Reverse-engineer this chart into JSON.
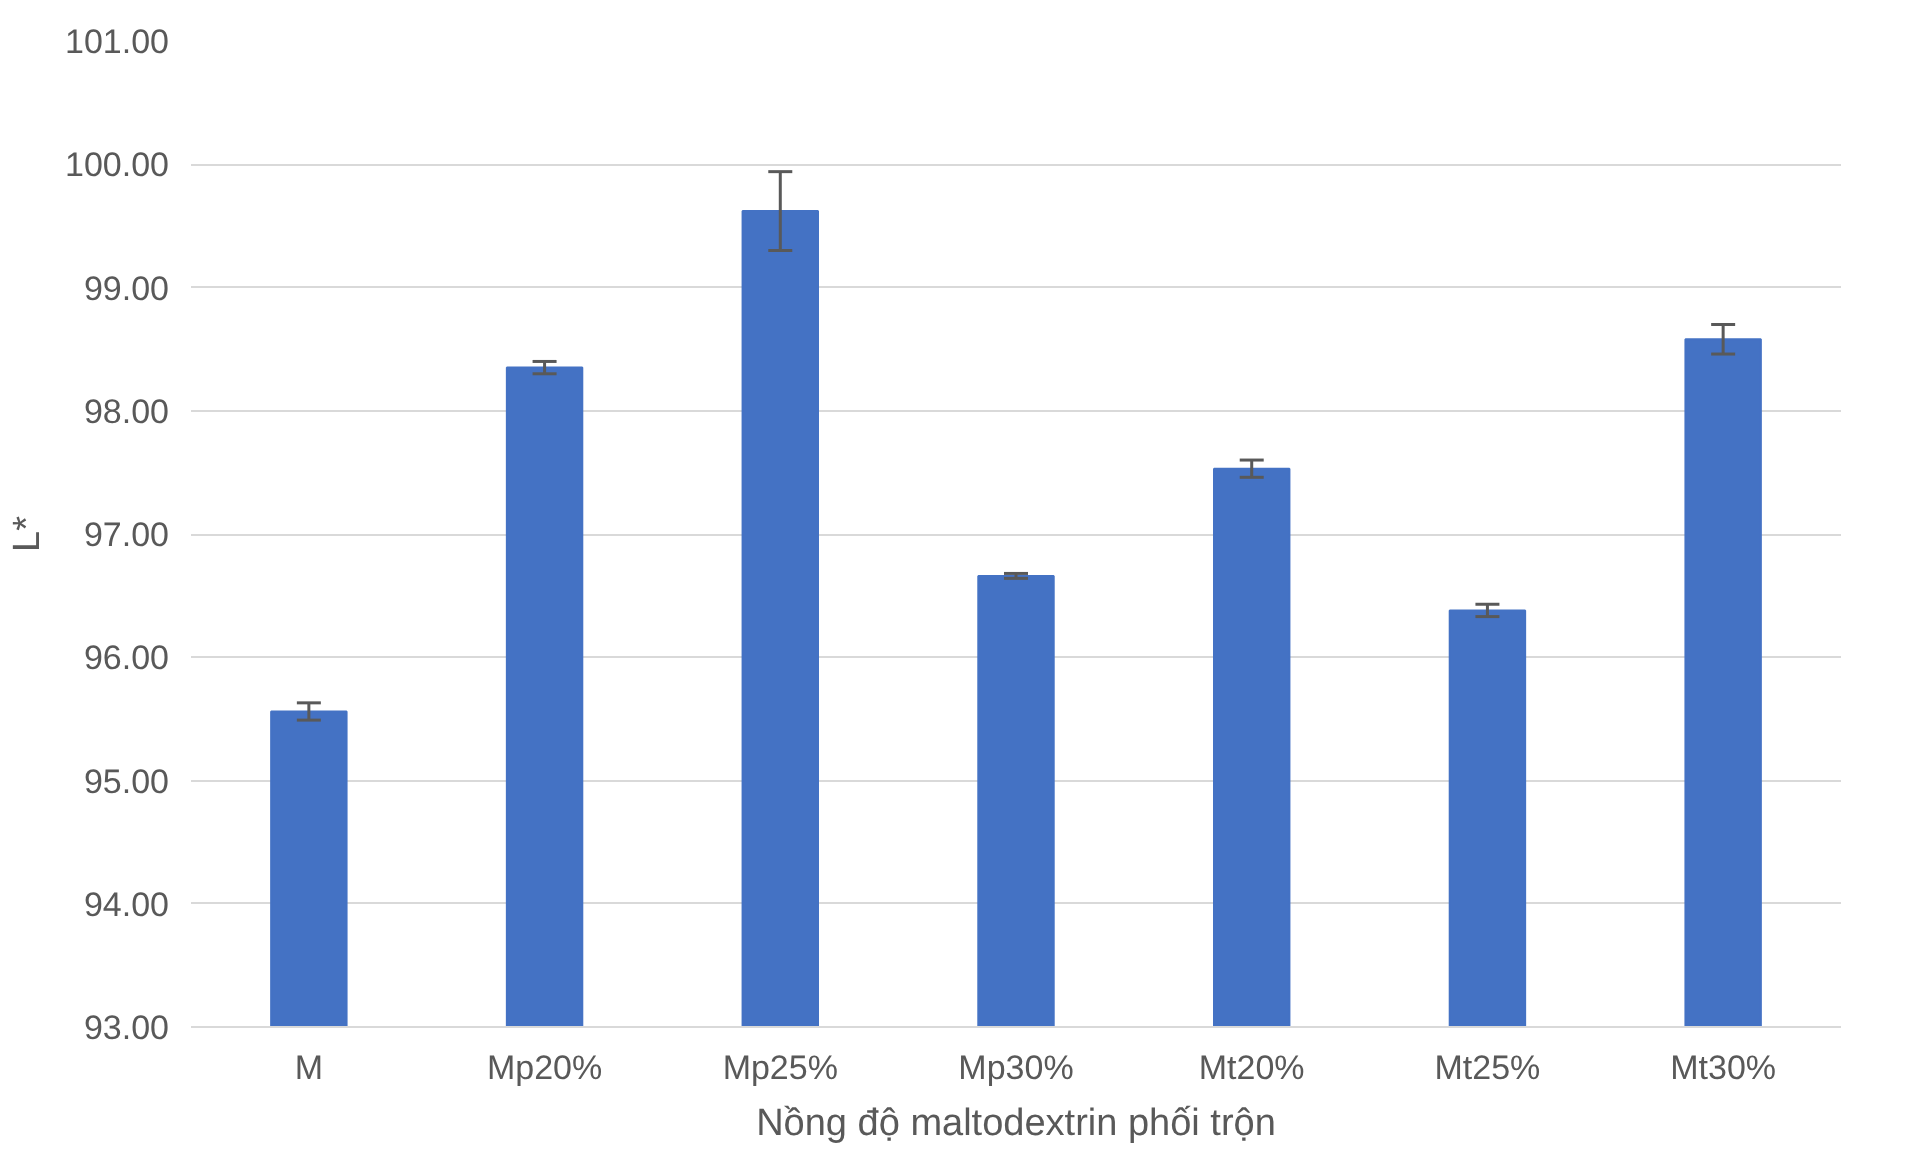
{
  "chart_data": {
    "type": "bar",
    "xlabel": "Nồng độ maltodextrin phối trộn",
    "ylabel": "L*",
    "categories": [
      "M",
      "Mp20%",
      "Mp25%",
      "Mp30%",
      "Mt20%",
      "Mt25%",
      "Mt30%"
    ],
    "values": [
      95.56,
      98.35,
      99.62,
      96.66,
      97.53,
      96.38,
      98.58
    ],
    "errors": [
      0.07,
      0.05,
      0.32,
      0.02,
      0.07,
      0.05,
      0.12
    ],
    "color": "#4472c4",
    "ylim": [
      93,
      101
    ],
    "yticks": [
      {
        "value": 93,
        "label": "93.00"
      },
      {
        "value": 94,
        "label": "94.00"
      },
      {
        "value": 95,
        "label": "95.00"
      },
      {
        "value": 96,
        "label": "96.00"
      },
      {
        "value": 97,
        "label": "97.00"
      },
      {
        "value": 98,
        "label": "98.00"
      },
      {
        "value": 99,
        "label": "99.00"
      },
      {
        "value": 100,
        "label": "100.00"
      },
      {
        "value": 101,
        "label": "101.00"
      }
    ],
    "grid": "y"
  }
}
